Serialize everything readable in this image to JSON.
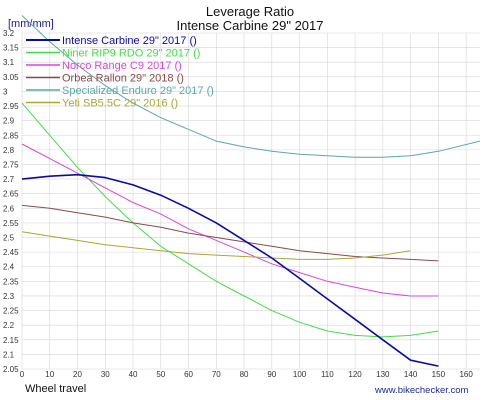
{
  "chart_data": {
    "type": "line",
    "title": "Leverage Ratio",
    "subtitle": "Intense Carbine 29\" 2017",
    "ylabel": "[mm/mm]",
    "xlabel": "Wheel travel",
    "credit": "www.bikechecker.com",
    "xlim": [
      0,
      165
    ],
    "ylim": [
      2.05,
      3.2
    ],
    "x_ticks": [
      0,
      10,
      20,
      30,
      40,
      50,
      60,
      70,
      80,
      90,
      100,
      110,
      120,
      130,
      140,
      150,
      160
    ],
    "y_ticks": [
      2.05,
      2.1,
      2.15,
      2.2,
      2.25,
      2.3,
      2.35,
      2.4,
      2.45,
      2.5,
      2.55,
      2.6,
      2.65,
      2.7,
      2.75,
      2.8,
      2.85,
      2.9,
      2.95,
      3,
      3.05,
      3.1,
      3.15,
      3.2
    ],
    "grid": true,
    "legend_position": "top-left",
    "series": [
      {
        "name": "Intense Carbine 29\" 2017 ()",
        "color": "#0a0aa8",
        "width": 1.6,
        "x": [
          0,
          10,
          20,
          30,
          40,
          50,
          60,
          70,
          80,
          90,
          100,
          110,
          120,
          130,
          140,
          150
        ],
        "y": [
          2.7,
          2.71,
          2.715,
          2.705,
          2.68,
          2.645,
          2.6,
          2.55,
          2.49,
          2.43,
          2.36,
          2.29,
          2.22,
          2.15,
          2.08,
          2.06
        ]
      },
      {
        "name": "Niner RIP9 RDO 29\" 2017 ()",
        "color": "#44dd44",
        "width": 1,
        "x": [
          0,
          10,
          20,
          30,
          40,
          50,
          60,
          70,
          80,
          90,
          100,
          110,
          120,
          130,
          140,
          150
        ],
        "y": [
          2.96,
          2.85,
          2.74,
          2.64,
          2.55,
          2.47,
          2.41,
          2.35,
          2.3,
          2.25,
          2.21,
          2.18,
          2.165,
          2.16,
          2.165,
          2.18
        ]
      },
      {
        "name": "Norco Range C9 2017 ()",
        "color": "#dd44dd",
        "width": 1,
        "x": [
          0,
          10,
          20,
          30,
          40,
          50,
          60,
          70,
          80,
          90,
          100,
          110,
          120,
          130,
          140,
          150
        ],
        "y": [
          2.82,
          2.77,
          2.72,
          2.67,
          2.62,
          2.58,
          2.53,
          2.49,
          2.45,
          2.41,
          2.38,
          2.35,
          2.33,
          2.31,
          2.3,
          2.3
        ]
      },
      {
        "name": "Orbea Rallon 29\" 2018 ()",
        "color": "#8b4a4a",
        "width": 1,
        "x": [
          0,
          10,
          20,
          30,
          40,
          50,
          60,
          70,
          80,
          90,
          100,
          110,
          120,
          130,
          140,
          150
        ],
        "y": [
          2.61,
          2.6,
          2.585,
          2.57,
          2.55,
          2.535,
          2.515,
          2.5,
          2.485,
          2.47,
          2.455,
          2.445,
          2.435,
          2.43,
          2.425,
          2.42
        ]
      },
      {
        "name": "Specialized Enduro 29\" 2017 ()",
        "color": "#5aa8a8",
        "width": 1,
        "x": [
          0,
          10,
          20,
          30,
          40,
          50,
          60,
          70,
          80,
          90,
          100,
          110,
          120,
          130,
          140,
          150,
          165
        ],
        "y": [
          3.26,
          3.17,
          3.09,
          3.02,
          2.96,
          2.91,
          2.87,
          2.83,
          2.81,
          2.795,
          2.785,
          2.78,
          2.775,
          2.775,
          2.78,
          2.795,
          2.83
        ]
      },
      {
        "name": "Yeti SB5.5C 29\" 2016 ()",
        "color": "#a8a832",
        "width": 1,
        "x": [
          0,
          10,
          20,
          30,
          40,
          50,
          60,
          70,
          80,
          90,
          100,
          110,
          120,
          130,
          140
        ],
        "y": [
          2.52,
          2.505,
          2.49,
          2.475,
          2.465,
          2.455,
          2.445,
          2.44,
          2.435,
          2.43,
          2.425,
          2.425,
          2.43,
          2.44,
          2.455
        ]
      }
    ]
  }
}
